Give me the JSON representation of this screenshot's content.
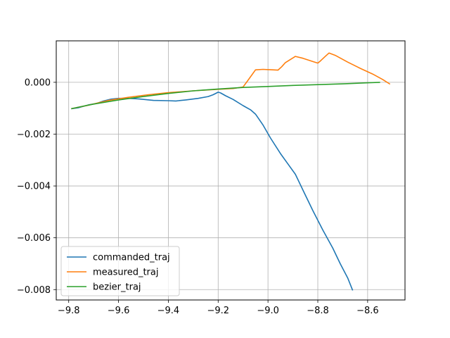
{
  "chart_data": {
    "type": "line",
    "xlim": [
      -9.85,
      -8.45
    ],
    "ylim": [
      -0.0084,
      0.0016
    ],
    "grid": true,
    "legend_position": "lower-left",
    "x_ticks": [
      -9.8,
      -9.6,
      -9.4,
      -9.2,
      -9.0,
      -8.8,
      -8.6
    ],
    "x_tick_labels": [
      "−9.8",
      "−9.6",
      "−9.4",
      "−9.2",
      "−9.0",
      "−8.8",
      "−8.6"
    ],
    "y_ticks": [
      0.0,
      -0.002,
      -0.004,
      -0.006,
      -0.008
    ],
    "y_tick_labels": [
      "0.000",
      "−0.002",
      "−0.004",
      "−0.006",
      "−0.008"
    ],
    "series": [
      {
        "name": "commanded_traj",
        "color": "#1f77b4",
        "points": [
          [
            -9.79,
            -0.00102
          ],
          [
            -9.76,
            -0.00098
          ],
          [
            -9.72,
            -0.00087
          ],
          [
            -9.69,
            -0.00082
          ],
          [
            -9.66,
            -0.00072
          ],
          [
            -9.63,
            -0.00065
          ],
          [
            -9.6,
            -0.00062
          ],
          [
            -9.56,
            -0.00062
          ],
          [
            -9.52,
            -0.00064
          ],
          [
            -9.46,
            -0.0007
          ],
          [
            -9.4,
            -0.00071
          ],
          [
            -9.37,
            -0.00072
          ],
          [
            -9.33,
            -0.00068
          ],
          [
            -9.28,
            -0.00062
          ],
          [
            -9.24,
            -0.00055
          ],
          [
            -9.22,
            -0.00048
          ],
          [
            -9.2,
            -0.00038
          ],
          [
            -9.19,
            -0.00041
          ],
          [
            -9.17,
            -0.00052
          ],
          [
            -9.14,
            -0.00066
          ],
          [
            -9.1,
            -0.0009
          ],
          [
            -9.07,
            -0.00106
          ],
          [
            -9.05,
            -0.00123
          ],
          [
            -9.02,
            -0.00165
          ],
          [
            -8.99,
            -0.00215
          ],
          [
            -8.95,
            -0.00275
          ],
          [
            -8.92,
            -0.00315
          ],
          [
            -8.89,
            -0.00355
          ],
          [
            -8.86,
            -0.00415
          ],
          [
            -8.82,
            -0.00495
          ],
          [
            -8.78,
            -0.0057
          ],
          [
            -8.74,
            -0.0064
          ],
          [
            -8.71,
            -0.007
          ],
          [
            -8.68,
            -0.00755
          ],
          [
            -8.66,
            -0.00803
          ]
        ]
      },
      {
        "name": "measured_traj",
        "color": "#ff7f0e",
        "points": [
          [
            -9.79,
            -0.00102
          ],
          [
            -9.72,
            -0.00088
          ],
          [
            -9.64,
            -0.0007
          ],
          [
            -9.56,
            -0.00058
          ],
          [
            -9.48,
            -0.00048
          ],
          [
            -9.4,
            -0.0004
          ],
          [
            -9.3,
            -0.00033
          ],
          [
            -9.2,
            -0.00027
          ],
          [
            -9.14,
            -0.00024
          ],
          [
            -9.1,
            -0.00018
          ],
          [
            -9.08,
            8e-05
          ],
          [
            -9.05,
            0.00048
          ],
          [
            -9.02,
            0.0005
          ],
          [
            -8.96,
            0.00047
          ],
          [
            -8.945,
            0.0006
          ],
          [
            -8.93,
            0.00076
          ],
          [
            -8.89,
            0.001
          ],
          [
            -8.86,
            0.00093
          ],
          [
            -8.82,
            0.0008
          ],
          [
            -8.8,
            0.00074
          ],
          [
            -8.79,
            0.00082
          ],
          [
            -8.77,
            0.001
          ],
          [
            -8.755,
            0.00113
          ],
          [
            -8.73,
            0.00104
          ],
          [
            -8.68,
            0.00078
          ],
          [
            -8.63,
            0.00054
          ],
          [
            -8.58,
            0.00032
          ],
          [
            -8.54,
            0.00011
          ],
          [
            -8.51,
            -7e-05
          ]
        ]
      },
      {
        "name": "bezier_traj",
        "color": "#2ca02c",
        "points": [
          [
            -9.79,
            -0.00102
          ],
          [
            -9.7,
            -0.00084
          ],
          [
            -9.6,
            -0.00068
          ],
          [
            -9.5,
            -0.00055
          ],
          [
            -9.4,
            -0.00043
          ],
          [
            -9.3,
            -0.00033
          ],
          [
            -9.2,
            -0.00026
          ],
          [
            -9.1,
            -0.0002
          ],
          [
            -9.0,
            -0.00016
          ],
          [
            -8.9,
            -0.00012
          ],
          [
            -8.8,
            -9e-05
          ],
          [
            -8.7,
            -6e-05
          ],
          [
            -8.6,
            -2e-05
          ],
          [
            -8.55,
            0.0
          ]
        ]
      }
    ]
  }
}
